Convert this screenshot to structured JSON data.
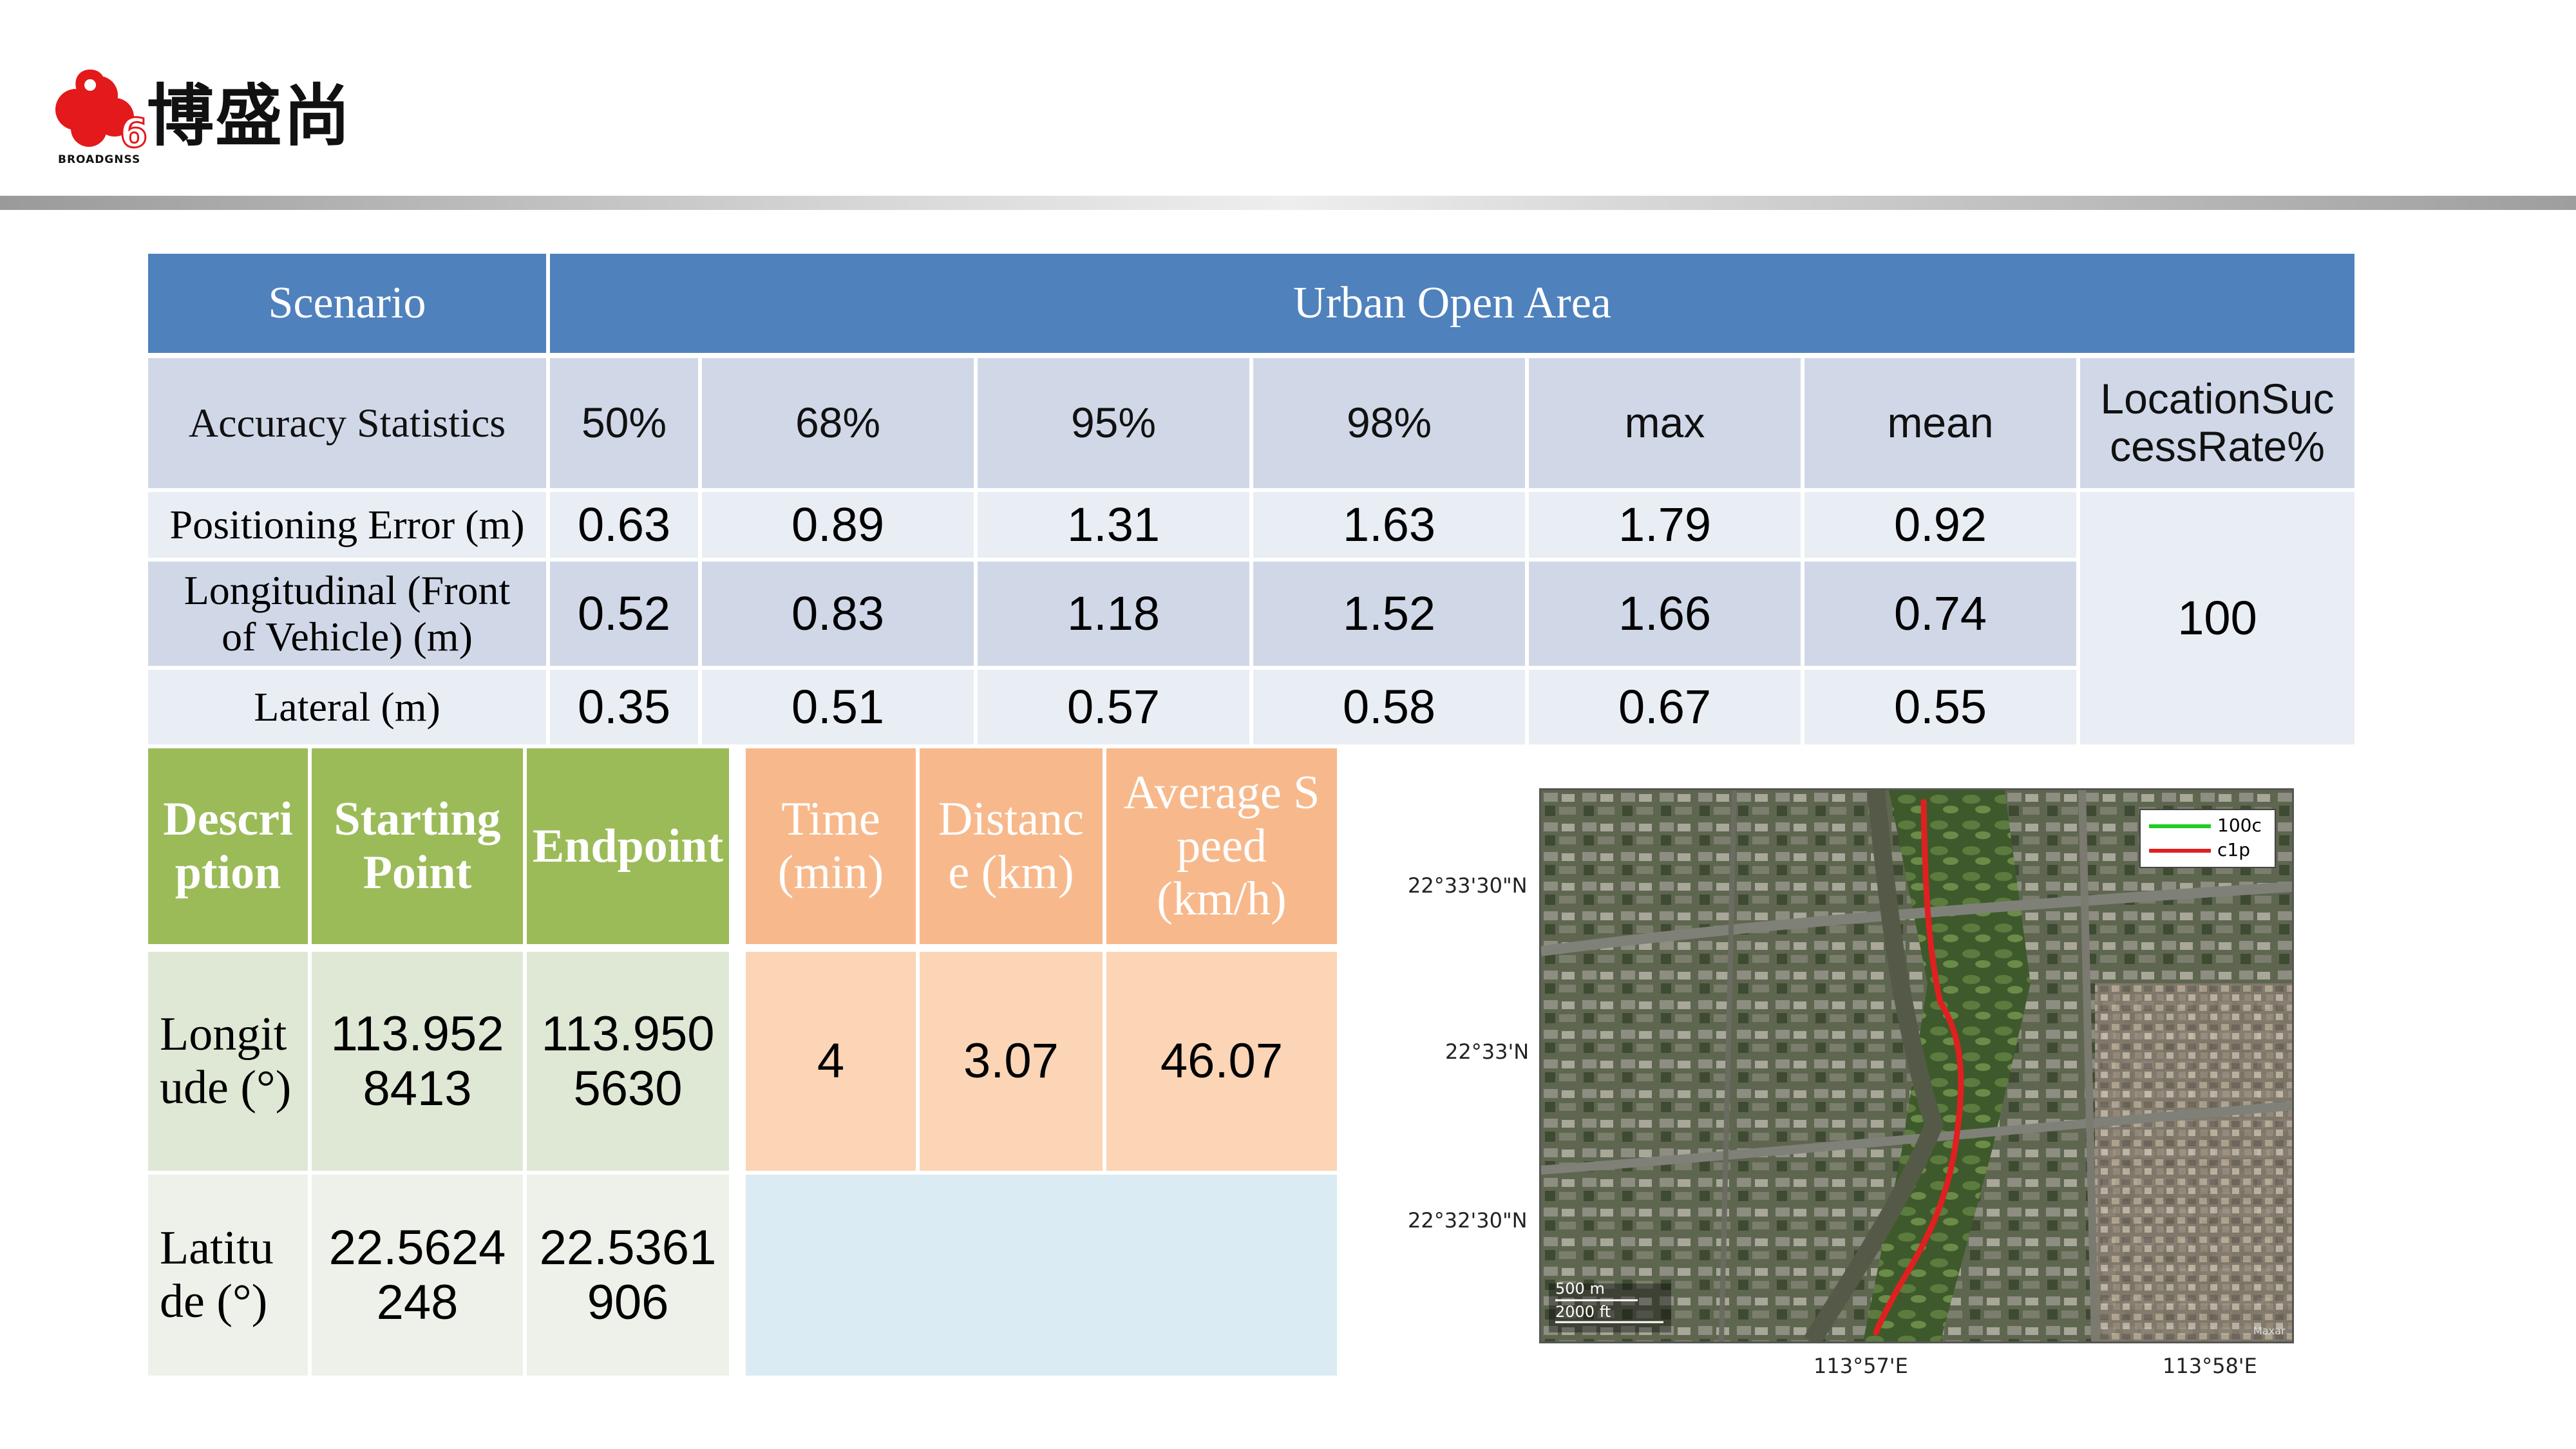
{
  "brand": {
    "name_cn": "博盛尚",
    "name_en": "BROADGNSS",
    "logo_color": "#e3191b"
  },
  "table1": {
    "header_row": {
      "scenario": "Scenario",
      "area": "Urban Open Area"
    },
    "stats_row": {
      "label": "Accuracy Statistics",
      "columns": [
        "50%",
        "68%",
        "95%",
        "98%",
        "max",
        "mean",
        "LocationSuc\ncessRate%"
      ]
    },
    "rows": [
      {
        "label": "Positioning Error (m)",
        "values": [
          "0.63",
          "0.89",
          "1.31",
          "1.63",
          "1.79",
          "0.92"
        ]
      },
      {
        "label": "Longitudinal (Front\nof Vehicle) (m)",
        "values": [
          "0.52",
          "0.83",
          "1.18",
          "1.52",
          "1.66",
          "0.74"
        ]
      },
      {
        "label": "Lateral (m)",
        "values": [
          "0.35",
          "0.51",
          "0.57",
          "0.58",
          "0.67",
          "0.55"
        ]
      }
    ],
    "success_rate": "100",
    "colors": {
      "header": "#4f81bd",
      "band_light": "#e9edf4",
      "band_dark": "#d0d8e8"
    }
  },
  "table2": {
    "headers": [
      "Descri\nption",
      "Starting\nPoint",
      "Endpoint"
    ],
    "rows": [
      {
        "label": "Longit\nude (°)",
        "start": "113.952\n8413",
        "end": "113.950\n5630"
      },
      {
        "label": "Latitu\nde (°)",
        "start": "22.5624\n248",
        "end": "22.5361\n906"
      }
    ],
    "colors": {
      "header": "#9bbb59",
      "row1": "#dfe8d5",
      "row2": "#eef1ea"
    }
  },
  "table3": {
    "headers": [
      "Time\n(min)",
      "Distanc\ne (km)",
      "Average S\npeed\n(km/h)"
    ],
    "values": [
      "4",
      "3.07",
      "46.07"
    ],
    "colors": {
      "header": "#f7b98c",
      "row": "#fbd5b6",
      "empty": "#dbebf3"
    }
  },
  "map": {
    "lat_labels": [
      "22°33'30\"N",
      "22°33'N",
      "22°32'30\"N"
    ],
    "lon_labels": [
      "113°57'E",
      "113°58'E"
    ],
    "legend": [
      {
        "name": "100c",
        "color": "#22cc22"
      },
      {
        "name": "c1p",
        "color": "#e02020"
      }
    ],
    "scale_labels": [
      "500 m",
      "2000 ft"
    ],
    "attribution": "Maxar"
  }
}
